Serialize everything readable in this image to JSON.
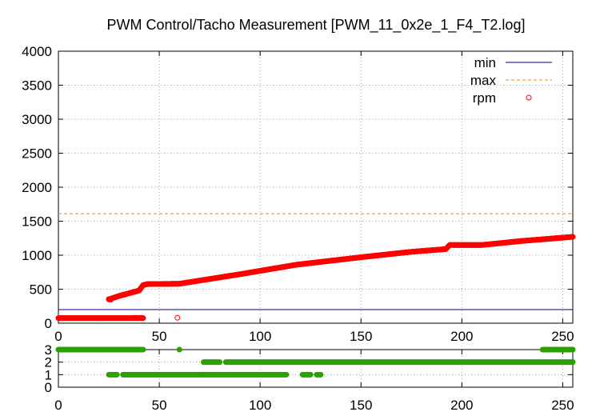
{
  "chart_data": [
    {
      "type": "scatter",
      "title": "PWM Control/Tacho Measurement [PWM_11_0x2e_1_F4_T2.log]",
      "xlim": [
        0,
        255
      ],
      "ylim": [
        0,
        4000
      ],
      "x_ticks": [
        0,
        50,
        100,
        150,
        200,
        250
      ],
      "y_ticks": [
        0,
        500,
        1000,
        1500,
        2000,
        2500,
        3000,
        3500,
        4000
      ],
      "grid": true,
      "legend_position": "top-right",
      "series": [
        {
          "name": "min",
          "kind": "hline",
          "y": 200,
          "color": "#000080"
        },
        {
          "name": "max",
          "kind": "hline",
          "y": 1610,
          "color": "#ff8000"
        },
        {
          "name": "rpm",
          "kind": "points",
          "color": "#ff0000",
          "curve": [
            [
              0,
              75
            ],
            [
              24,
              75
            ],
            [
              34,
              75
            ],
            [
              42,
              75
            ]
          ],
          "ramp": [
            [
              25,
              350
            ],
            [
              30,
              400
            ],
            [
              35,
              440
            ],
            [
              40,
              480
            ],
            [
              42,
              560
            ],
            [
              44,
              575
            ],
            [
              60,
              580
            ],
            [
              75,
              650
            ],
            [
              90,
              720
            ],
            [
              118,
              860
            ],
            [
              150,
              970
            ],
            [
              175,
              1050
            ],
            [
              192,
              1090
            ],
            [
              194,
              1150
            ],
            [
              210,
              1150
            ],
            [
              230,
              1210
            ],
            [
              255,
              1270
            ]
          ],
          "isolated": [
            [
              26,
              345
            ],
            [
              25,
              355
            ],
            [
              29,
              390
            ],
            [
              32,
              415
            ],
            [
              33,
              420
            ],
            [
              37,
              80
            ],
            [
              38,
              80
            ],
            [
              39,
              80
            ],
            [
              41,
              80
            ],
            [
              59,
              80
            ]
          ]
        }
      ]
    },
    {
      "type": "scatter",
      "xlim": [
        0,
        255
      ],
      "ylim": [
        0,
        3
      ],
      "x_ticks": [
        0,
        50,
        100,
        150,
        200,
        250
      ],
      "y_ticks": [
        0,
        1,
        2,
        3
      ],
      "grid": true,
      "series": [
        {
          "name": "state",
          "color": "#2ca000",
          "segments": [
            {
              "y": 3,
              "x": [
                0,
                42
              ]
            },
            {
              "y": 3,
              "x": [
                60,
                60
              ]
            },
            {
              "y": 3,
              "x": [
                240,
                255
              ]
            },
            {
              "y": 2,
              "x": [
                72,
                80
              ]
            },
            {
              "y": 2,
              "x": [
                83,
                255
              ]
            },
            {
              "y": 1,
              "x": [
                25,
                29
              ]
            },
            {
              "y": 1,
              "x": [
                32,
                113
              ]
            },
            {
              "y": 1,
              "x": [
                121,
                125
              ]
            },
            {
              "y": 1,
              "x": [
                128,
                130
              ]
            }
          ]
        }
      ]
    }
  ]
}
